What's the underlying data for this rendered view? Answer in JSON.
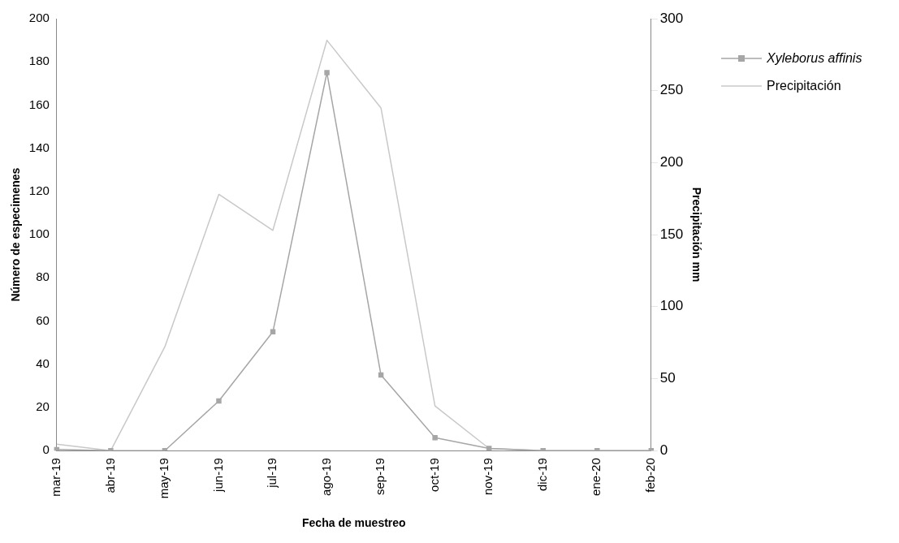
{
  "chart_data": {
    "type": "line",
    "xlabel": "Fecha de muestreo",
    "ylabel": "Número de especimenes",
    "y2label": "Precipitación mm",
    "categories": [
      "mar-19",
      "abr-19",
      "may-19",
      "jun-19",
      "jul-19",
      "ago-19",
      "sep-19",
      "oct-19",
      "nov-19",
      "dic-19",
      "ene-20",
      "feb-20"
    ],
    "series": [
      {
        "name": "Xyleborus affinis",
        "color": "#a6a6a6",
        "marker": "square",
        "values": [
          0.5,
          0,
          0,
          23,
          55,
          175,
          35,
          6,
          1,
          0,
          0,
          0
        ]
      },
      {
        "name": "Precipitación",
        "color": "#c8c8c8",
        "marker": "none",
        "axis": "y2",
        "values": [
          4.5,
          0,
          72,
          178,
          153,
          285,
          238,
          31,
          1.5,
          0,
          0,
          0
        ]
      }
    ],
    "ylim": [
      0,
      200
    ],
    "yticks": [
      0,
      20,
      40,
      60,
      80,
      100,
      120,
      140,
      160,
      180,
      200
    ],
    "y2lim": [
      0,
      300
    ],
    "y2ticks": [
      0,
      50,
      100,
      150,
      200,
      250,
      300
    ],
    "grid": false,
    "legend": "right"
  }
}
